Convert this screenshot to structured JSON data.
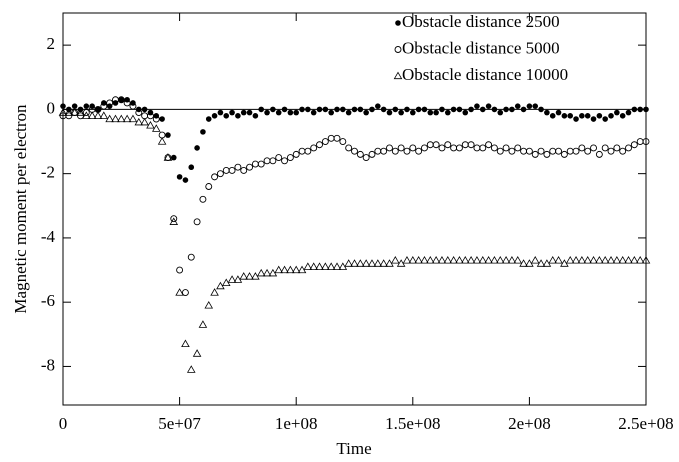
{
  "chart_data": {
    "type": "scatter",
    "xlabel": "Time",
    "ylabel": "Magnetic moment per electron",
    "xlim": [
      0,
      250000000
    ],
    "ylim": [
      -9.2,
      3
    ],
    "xticks": [
      0,
      {
        "value": 50000000,
        "label": "5e+07"
      },
      {
        "value": 100000000,
        "label": "1e+08"
      },
      {
        "value": 150000000,
        "label": "1.5e+08"
      },
      {
        "value": 200000000,
        "label": "2e+08"
      },
      {
        "value": 250000000,
        "label": "2.5e+08"
      }
    ],
    "yticks": [
      2,
      0,
      -2,
      -4,
      -6,
      -8
    ],
    "reference_line": 0,
    "legend": "top-right",
    "x": [
      0,
      2500000,
      5000000,
      7500000,
      10000000,
      12500000,
      15000000,
      17500000,
      20000000,
      22500000,
      25000000,
      27500000,
      30000000,
      32500000,
      35000000,
      37500000,
      40000000,
      42500000,
      45000000,
      47500000,
      50000000,
      52500000,
      55000000,
      57500000,
      60000000,
      62500000,
      65000000,
      67500000,
      70000000,
      72500000,
      75000000,
      77500000,
      80000000,
      82500000,
      85000000,
      87500000,
      90000000,
      92500000,
      95000000,
      97500000,
      100000000,
      102500000,
      105000000,
      107500000,
      110000000,
      112500000,
      115000000,
      117500000,
      120000000,
      122500000,
      125000000,
      127500000,
      130000000,
      132500000,
      135000000,
      137500000,
      140000000,
      142500000,
      145000000,
      147500000,
      150000000,
      152500000,
      155000000,
      157500000,
      160000000,
      162500000,
      165000000,
      167500000,
      170000000,
      172500000,
      175000000,
      177500000,
      180000000,
      182500000,
      185000000,
      187500000,
      190000000,
      192500000,
      195000000,
      197500000,
      200000000,
      202500000,
      205000000,
      207500000,
      210000000,
      212500000,
      215000000,
      217500000,
      220000000,
      222500000,
      225000000,
      227500000,
      230000000,
      232500000,
      235000000,
      237500000,
      240000000,
      242500000,
      245000000,
      247500000,
      250000000
    ],
    "series": [
      {
        "name": "Obstacle distance 2500",
        "color": "#000000",
        "marker": "filled-circle",
        "values": [
          0.1,
          0.0,
          0.1,
          0.0,
          0.1,
          0.1,
          0.0,
          0.2,
          0.1,
          0.2,
          0.3,
          0.3,
          0.2,
          0.0,
          0.0,
          -0.1,
          -0.2,
          -0.3,
          -0.8,
          -1.5,
          -2.1,
          -2.2,
          -1.8,
          -1.2,
          -0.7,
          -0.3,
          -0.2,
          -0.1,
          -0.2,
          -0.1,
          -0.2,
          -0.1,
          -0.1,
          -0.2,
          0.0,
          -0.1,
          0.0,
          -0.1,
          0.0,
          -0.1,
          -0.1,
          0.0,
          0.0,
          -0.1,
          0.0,
          0.0,
          -0.1,
          0.0,
          0.0,
          -0.1,
          0.0,
          0.0,
          -0.1,
          0.0,
          0.1,
          0.0,
          -0.1,
          0.0,
          -0.1,
          0.0,
          -0.1,
          0.0,
          0.0,
          -0.1,
          -0.1,
          0.0,
          -0.1,
          0.0,
          0.0,
          -0.1,
          0.0,
          0.1,
          0.0,
          0.1,
          0.0,
          -0.1,
          0.0,
          0.0,
          0.1,
          0.0,
          0.1,
          0.1,
          0.0,
          -0.1,
          -0.2,
          -0.1,
          -0.2,
          -0.2,
          -0.3,
          -0.2,
          -0.2,
          -0.3,
          -0.2,
          -0.3,
          -0.2,
          -0.1,
          -0.2,
          -0.1,
          0.0,
          0.0,
          0.0
        ]
      },
      {
        "name": "Obstacle distance 5000",
        "color": "#000000",
        "marker": "open-circle",
        "values": [
          -0.2,
          -0.2,
          -0.1,
          -0.2,
          -0.1,
          0.0,
          0.0,
          0.1,
          0.2,
          0.3,
          0.3,
          0.2,
          0.1,
          -0.1,
          -0.2,
          -0.2,
          -0.3,
          -0.8,
          -1.5,
          -3.4,
          -5.0,
          -5.7,
          -4.6,
          -3.5,
          -2.8,
          -2.4,
          -2.1,
          -2.0,
          -1.9,
          -1.9,
          -1.8,
          -1.9,
          -1.8,
          -1.7,
          -1.7,
          -1.6,
          -1.6,
          -1.5,
          -1.6,
          -1.5,
          -1.4,
          -1.3,
          -1.3,
          -1.2,
          -1.1,
          -1.0,
          -0.9,
          -0.9,
          -1.0,
          -1.2,
          -1.3,
          -1.4,
          -1.5,
          -1.4,
          -1.3,
          -1.3,
          -1.2,
          -1.3,
          -1.2,
          -1.3,
          -1.2,
          -1.3,
          -1.2,
          -1.1,
          -1.1,
          -1.2,
          -1.1,
          -1.2,
          -1.2,
          -1.1,
          -1.1,
          -1.2,
          -1.2,
          -1.1,
          -1.2,
          -1.3,
          -1.2,
          -1.3,
          -1.2,
          -1.3,
          -1.3,
          -1.4,
          -1.3,
          -1.4,
          -1.3,
          -1.3,
          -1.4,
          -1.3,
          -1.3,
          -1.2,
          -1.3,
          -1.2,
          -1.4,
          -1.2,
          -1.3,
          -1.2,
          -1.3,
          -1.2,
          -1.1,
          -1.0,
          -1.0
        ]
      },
      {
        "name": "Obstacle distance 10000",
        "color": "#000000",
        "marker": "open-triangle",
        "values": [
          -0.1,
          -0.1,
          -0.1,
          -0.1,
          -0.2,
          -0.2,
          -0.2,
          -0.2,
          -0.3,
          -0.3,
          -0.3,
          -0.3,
          -0.3,
          -0.4,
          -0.4,
          -0.5,
          -0.6,
          -1.0,
          -1.5,
          -3.5,
          -5.7,
          -7.3,
          -8.1,
          -7.6,
          -6.7,
          -6.1,
          -5.7,
          -5.5,
          -5.4,
          -5.3,
          -5.3,
          -5.2,
          -5.2,
          -5.2,
          -5.1,
          -5.1,
          -5.1,
          -5.0,
          -5.0,
          -5.0,
          -5.0,
          -5.0,
          -4.9,
          -4.9,
          -4.9,
          -4.9,
          -4.9,
          -4.9,
          -4.9,
          -4.8,
          -4.8,
          -4.8,
          -4.8,
          -4.8,
          -4.8,
          -4.8,
          -4.8,
          -4.7,
          -4.8,
          -4.7,
          -4.7,
          -4.7,
          -4.7,
          -4.7,
          -4.7,
          -4.7,
          -4.7,
          -4.7,
          -4.7,
          -4.7,
          -4.7,
          -4.7,
          -4.7,
          -4.7,
          -4.7,
          -4.7,
          -4.7,
          -4.7,
          -4.7,
          -4.8,
          -4.8,
          -4.7,
          -4.8,
          -4.8,
          -4.7,
          -4.7,
          -4.8,
          -4.7,
          -4.7,
          -4.7,
          -4.7,
          -4.7,
          -4.7,
          -4.7,
          -4.7,
          -4.7,
          -4.7,
          -4.7,
          -4.7,
          -4.7,
          -4.7
        ]
      }
    ]
  }
}
